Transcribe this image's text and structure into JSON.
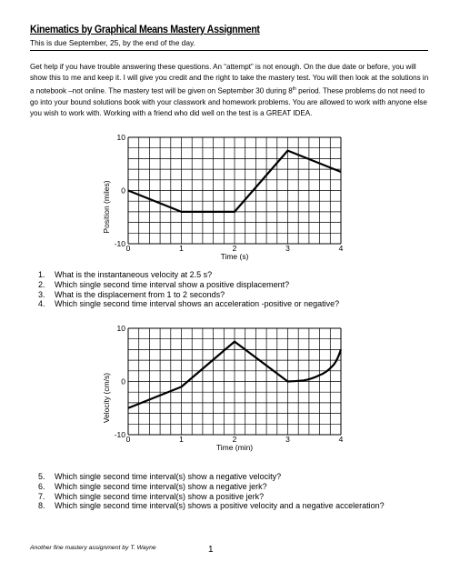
{
  "header": {
    "title": "Kinematics by Graphical Means Mastery Assignment",
    "due_line": "This is due September, 25, by the end of the day."
  },
  "intro": {
    "part1": "Get help if you have trouble answering these questions. An “attempt” is not enough. On the due date or before, you will show this to me and keep it. I will give you credit and the right to take the mastery test. You will then look at the solutions in a notebook –not online. The mastery test will be given on September 30 during 8",
    "superscript": "th",
    "part2": " period. These problems do not need to go into your bound solutions book with your classwork and homework problems. You are allowed to work with anyone else you wish to work with. Working with a friend who did well on the test is a GREAT IDEA."
  },
  "chart_data": [
    {
      "type": "line",
      "title": "",
      "xlabel": "Time (s)",
      "ylabel": "Position (miles)",
      "xlim": [
        0,
        4
      ],
      "ylim": [
        -10,
        10
      ],
      "x_ticks": [
        "0",
        "1",
        "2",
        "3",
        "4"
      ],
      "y_ticks": [
        "10",
        "0",
        "-10"
      ],
      "grid": true,
      "series": [
        {
          "points": [
            [
              0,
              0
            ],
            [
              1,
              -4
            ],
            [
              2,
              -4
            ],
            [
              3,
              7.5
            ],
            [
              4,
              3.5
            ]
          ]
        }
      ]
    },
    {
      "type": "line",
      "title": "",
      "xlabel": "Time (min)",
      "ylabel": "Velocity (cm/s)",
      "xlim": [
        0,
        4
      ],
      "ylim": [
        -10,
        10
      ],
      "x_ticks": [
        "0",
        "1",
        "2",
        "3",
        "4"
      ],
      "y_ticks": [
        "10",
        "0",
        "-10"
      ],
      "grid": true,
      "series": [
        {
          "points": [
            [
              0,
              -5
            ],
            [
              1,
              -1
            ],
            [
              2,
              7.5
            ],
            [
              3,
              0
            ],
            [
              3.3,
              0.2
            ],
            [
              3.6,
              1.2
            ],
            [
              3.85,
              3
            ],
            [
              4,
              6
            ]
          ]
        }
      ]
    }
  ],
  "questions_1": [
    {
      "num": "1.",
      "text": "What is the instantaneous velocity at 2.5 s?"
    },
    {
      "num": "2.",
      "text": "Which single second time interval show a positive displacement?"
    },
    {
      "num": "3.",
      "text": "What is the displacement from 1 to 2 seconds?"
    },
    {
      "num": "4.",
      "text": "Which single second time interval shows an acceleration -positive or negative?"
    }
  ],
  "questions_2": [
    {
      "num": "5.",
      "text": "Which single second time interval(s) show a negative velocity?"
    },
    {
      "num": "6.",
      "text": "Which single second time interval(s) show a negative jerk?"
    },
    {
      "num": "7.",
      "text": "Which single second time interval(s) show a positive jerk?"
    },
    {
      "num": "8.",
      "text": "Which single second time interval(s) shows a positive velocity and a negative acceleration?"
    }
  ],
  "footer": {
    "text": "Another fine mastery assignment by T. Wayne",
    "page": "1"
  }
}
